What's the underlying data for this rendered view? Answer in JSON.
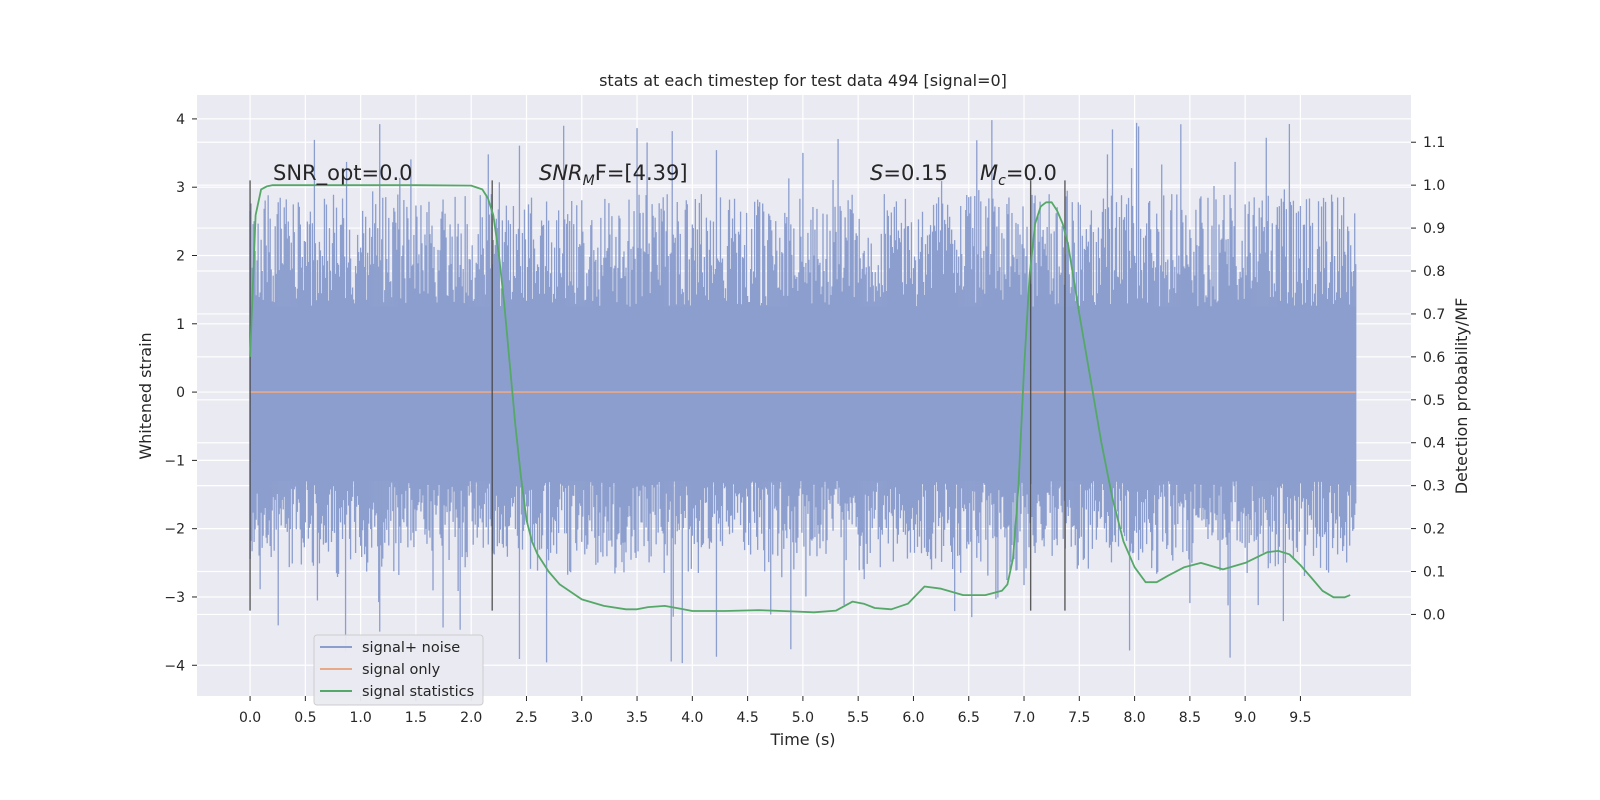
{
  "chart_data": {
    "type": "line",
    "title": "stats at each timestep for test data 494 [signal=0]",
    "xlabel": "Time (s)",
    "ylabel_left": "Whitened strain",
    "ylabel_right": "Detection probability/MF",
    "xlim": [
      -0.48,
      10.5
    ],
    "ylim_left": [
      -4.45,
      4.35
    ],
    "ylim_right": [
      -0.19,
      1.21
    ],
    "x_ticks": [
      "0.0",
      "0.5",
      "1.0",
      "1.5",
      "2.0",
      "2.5",
      "3.0",
      "3.5",
      "4.0",
      "4.5",
      "5.0",
      "5.5",
      "6.0",
      "6.5",
      "7.0",
      "7.5",
      "8.0",
      "8.5",
      "9.0",
      "9.5"
    ],
    "y_ticks_left": [
      "4",
      "3",
      "2",
      "1",
      "0",
      "−1",
      "−2",
      "−3",
      "−4"
    ],
    "y_ticks_right": [
      "1.1",
      "1.0",
      "0.9",
      "0.8",
      "0.7",
      "0.6",
      "0.5",
      "0.4",
      "0.3",
      "0.2",
      "0.1",
      "0.0"
    ],
    "grid": true,
    "legend": {
      "position": "lower-left",
      "entries": [
        {
          "label": "signal+ noise",
          "color": "#8c9ece"
        },
        {
          "label": "signal only",
          "color": "#e8a98a"
        },
        {
          "label": "signal statistics",
          "color": "#55a868"
        }
      ]
    },
    "annotations": {
      "snr_opt": "SNR_opt=0.0",
      "snr_mf_prefix": "SNR",
      "snr_mf_sub": "M",
      "snr_mf_suffix": "F=[4.39]",
      "s_var": "S",
      "s_value": "=0.15",
      "mc_var": "M",
      "mc_sub": "c",
      "mc_value": "=0.0"
    },
    "vertical_markers": [
      0.0,
      2.19,
      7.06,
      7.37
    ],
    "series": [
      {
        "name": "signal+ noise",
        "color": "#8c9ece",
        "x_range": [
          0.0,
          10.0
        ],
        "core_band": [
          -1.3,
          1.25
        ],
        "envelope": [
          -2.8,
          2.9
        ],
        "extremes": [
          -4.05,
          4.0
        ]
      },
      {
        "name": "signal only",
        "color": "#e8a98a",
        "x": [
          0.0,
          10.0
        ],
        "y": [
          0.0,
          0.0
        ]
      },
      {
        "name": "signal statistics",
        "color": "#55a868",
        "x": [
          0.0,
          0.05,
          0.1,
          0.15,
          0.2,
          0.3,
          0.5,
          1.0,
          1.5,
          2.0,
          2.1,
          2.15,
          2.2,
          2.25,
          2.3,
          2.35,
          2.4,
          2.45,
          2.5,
          2.55,
          2.6,
          2.7,
          2.8,
          3.0,
          3.2,
          3.4,
          3.5,
          3.6,
          3.75,
          3.9,
          4.0,
          4.3,
          4.6,
          4.9,
          5.1,
          5.3,
          5.45,
          5.55,
          5.65,
          5.8,
          5.95,
          6.1,
          6.25,
          6.45,
          6.65,
          6.8,
          6.85,
          6.9,
          6.95,
          7.0,
          7.05,
          7.1,
          7.15,
          7.2,
          7.25,
          7.3,
          7.35,
          7.4,
          7.5,
          7.6,
          7.7,
          7.8,
          7.9,
          8.0,
          8.1,
          8.2,
          8.3,
          8.45,
          8.6,
          8.8,
          9.0,
          9.2,
          9.3,
          9.4,
          9.5,
          9.6,
          9.7,
          9.8,
          9.9,
          9.95
        ],
        "y": [
          0.6,
          0.93,
          0.99,
          0.997,
          1.0,
          1.0,
          1.0,
          1.0,
          1.0,
          0.999,
          0.99,
          0.97,
          0.93,
          0.84,
          0.72,
          0.58,
          0.44,
          0.32,
          0.22,
          0.17,
          0.14,
          0.1,
          0.07,
          0.035,
          0.02,
          0.012,
          0.012,
          0.017,
          0.02,
          0.013,
          0.008,
          0.008,
          0.01,
          0.007,
          0.005,
          0.009,
          0.03,
          0.025,
          0.015,
          0.012,
          0.025,
          0.065,
          0.06,
          0.045,
          0.045,
          0.055,
          0.07,
          0.13,
          0.3,
          0.57,
          0.79,
          0.91,
          0.95,
          0.96,
          0.96,
          0.94,
          0.91,
          0.86,
          0.7,
          0.55,
          0.4,
          0.27,
          0.17,
          0.11,
          0.075,
          0.075,
          0.09,
          0.11,
          0.12,
          0.105,
          0.12,
          0.145,
          0.148,
          0.14,
          0.115,
          0.085,
          0.055,
          0.04,
          0.04,
          0.045
        ]
      }
    ]
  }
}
